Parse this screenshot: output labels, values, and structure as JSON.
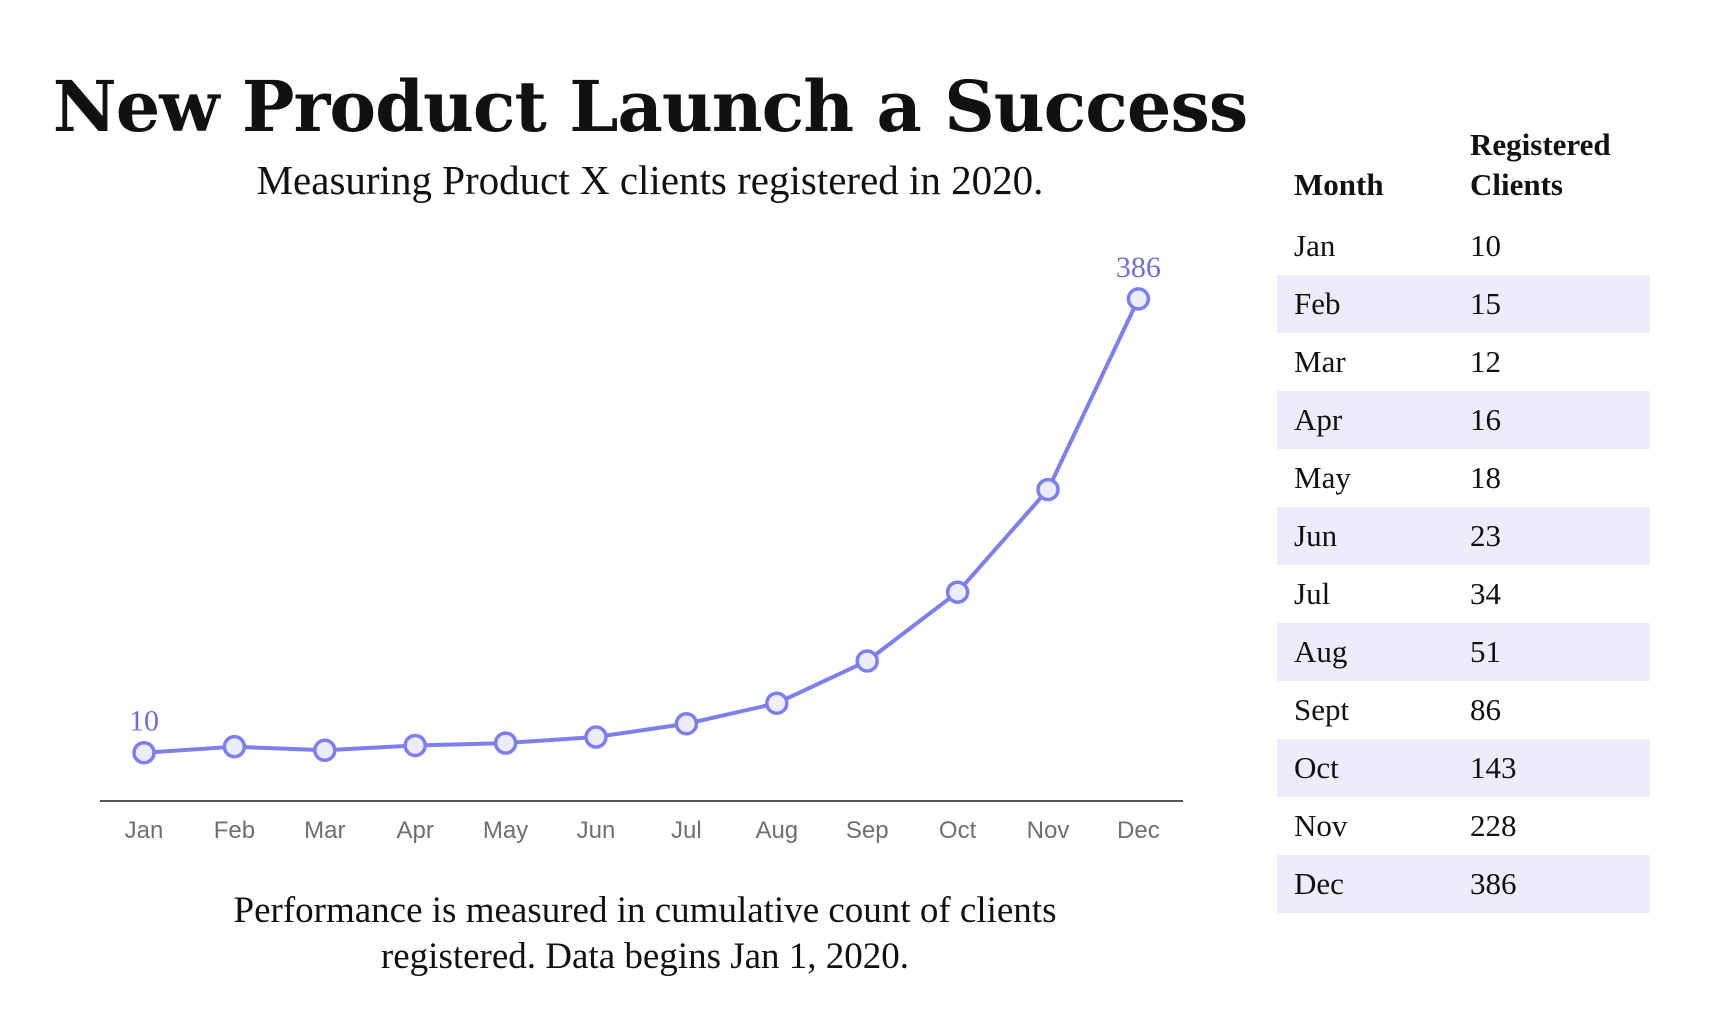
{
  "title": "New Product Launch a Success",
  "subtitle": "Measuring Product X clients registered in 2020.",
  "caption_lines": [
    "Performance is measured in cumulative count of clients",
    "registered. Data begins Jan 1, 2020."
  ],
  "colors": {
    "accent": "#7b7ff0",
    "accent_text": "#6b6fe0",
    "marker_fill": "#ececfb",
    "stripe": "#ececfb",
    "axis": "#555555",
    "tick_text": "#6f6f6f"
  },
  "table": {
    "headers": {
      "month": "Month",
      "clients_line1": "Registered",
      "clients_line2": "Clients"
    },
    "rows": [
      {
        "month": "Jan",
        "clients": "10"
      },
      {
        "month": "Feb",
        "clients": "15"
      },
      {
        "month": "Mar",
        "clients": "12"
      },
      {
        "month": "Apr",
        "clients": "16"
      },
      {
        "month": "May",
        "clients": "18"
      },
      {
        "month": "Jun",
        "clients": "23"
      },
      {
        "month": "Jul",
        "clients": "34"
      },
      {
        "month": "Aug",
        "clients": "51"
      },
      {
        "month": "Sept",
        "clients": "86"
      },
      {
        "month": "Oct",
        "clients": "143"
      },
      {
        "month": "Nov",
        "clients": "228"
      },
      {
        "month": "Dec",
        "clients": "386"
      }
    ]
  },
  "chart_data": {
    "type": "line",
    "title": "New Product Launch a Success",
    "subtitle": "Measuring Product X clients registered in 2020.",
    "categories": [
      "Jan",
      "Feb",
      "Mar",
      "Apr",
      "May",
      "Jun",
      "Jul",
      "Aug",
      "Sep",
      "Oct",
      "Nov",
      "Dec"
    ],
    "series": [
      {
        "name": "Registered Clients",
        "values": [
          10,
          15,
          12,
          16,
          18,
          23,
          34,
          51,
          86,
          143,
          228,
          386
        ]
      }
    ],
    "xlabel": "",
    "ylabel": "",
    "ylim": [
      -30,
      400
    ],
    "grid": false,
    "legend": "none",
    "data_labels": [
      {
        "index": 0,
        "text": "10"
      },
      {
        "index": 11,
        "text": "386"
      }
    ]
  }
}
